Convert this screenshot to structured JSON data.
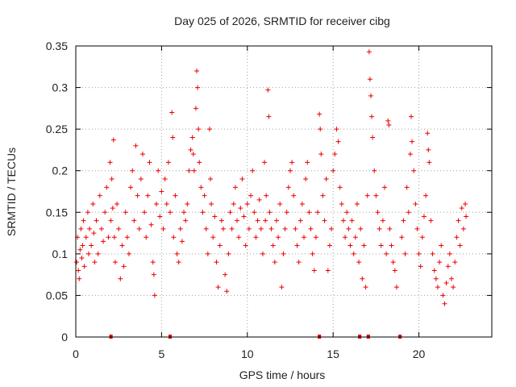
{
  "chart_data": {
    "type": "scatter",
    "title": "Day 025 of 2026, SRMTID for receiver cibg",
    "xlabel": "GPS time / hours",
    "ylabel": "SRMTID / TECUs",
    "xlim": [
      0,
      24.25
    ],
    "ylim": [
      0,
      0.35
    ],
    "xticks": [
      0,
      5,
      10,
      15,
      20
    ],
    "xtick_labels": [
      "0",
      "5",
      "10",
      "15",
      "20"
    ],
    "yticks": [
      0,
      0.05,
      0.1,
      0.15,
      0.2,
      0.25,
      0.3,
      0.35
    ],
    "ytick_labels": [
      "0",
      "0.05",
      "0.1",
      "0.15",
      "0.2",
      "0.25",
      "0.3",
      "0.35"
    ],
    "grid": true,
    "marker": "+",
    "color": "#ee0000",
    "series": [
      {
        "name": "SRMTID",
        "points": [
          [
            0.05,
            0.09
          ],
          [
            0.1,
            0.12
          ],
          [
            0.15,
            0.08
          ],
          [
            0.2,
            0.07
          ],
          [
            0.25,
            0.105
          ],
          [
            0.3,
            0.13
          ],
          [
            0.35,
            0.095
          ],
          [
            0.4,
            0.11
          ],
          [
            0.45,
            0.14
          ],
          [
            0.5,
            0.085
          ],
          [
            0.6,
            0.12
          ],
          [
            0.7,
            0.15
          ],
          [
            0.75,
            0.1
          ],
          [
            0.8,
            0.13
          ],
          [
            0.9,
            0.11
          ],
          [
            1.0,
            0.16
          ],
          [
            1.05,
            0.125
          ],
          [
            1.1,
            0.09
          ],
          [
            1.2,
            0.14
          ],
          [
            1.3,
            0.1
          ],
          [
            1.4,
            0.17
          ],
          [
            1.5,
            0.13
          ],
          [
            1.6,
            0.115
          ],
          [
            1.7,
            0.15
          ],
          [
            1.8,
            0.18
          ],
          [
            1.9,
            0.12
          ],
          [
            2.0,
            0.21
          ],
          [
            2.05,
            0.14
          ],
          [
            2.1,
            0.19
          ],
          [
            2.15,
            0.155
          ],
          [
            2.2,
            0.237
          ],
          [
            2.25,
            0.12
          ],
          [
            2.3,
            0.09
          ],
          [
            2.4,
            0.16
          ],
          [
            2.5,
            0.13
          ],
          [
            2.6,
            0.07
          ],
          [
            2.7,
            0.11
          ],
          [
            2.8,
            0.085
          ],
          [
            2.9,
            0.15
          ],
          [
            3.0,
            0.12
          ],
          [
            3.1,
            0.1
          ],
          [
            3.2,
            0.18
          ],
          [
            3.3,
            0.2
          ],
          [
            3.4,
            0.14
          ],
          [
            3.5,
            0.23
          ],
          [
            3.6,
            0.17
          ],
          [
            3.7,
            0.13
          ],
          [
            3.8,
            0.19
          ],
          [
            3.9,
            0.22
          ],
          [
            4.0,
            0.15
          ],
          [
            4.1,
            0.12
          ],
          [
            4.2,
            0.17
          ],
          [
            4.3,
            0.21
          ],
          [
            4.4,
            0.135
          ],
          [
            4.5,
            0.09
          ],
          [
            4.55,
            0.075
          ],
          [
            4.6,
            0.05
          ],
          [
            4.7,
            0.16
          ],
          [
            4.8,
            0.2
          ],
          [
            4.9,
            0.145
          ],
          [
            5.0,
            0.175
          ],
          [
            5.1,
            0.13
          ],
          [
            5.2,
            0.19
          ],
          [
            5.3,
            0.16
          ],
          [
            5.4,
            0.21
          ],
          [
            5.5,
            0.15
          ],
          [
            5.6,
            0.27
          ],
          [
            5.65,
            0.24
          ],
          [
            5.7,
            0.12
          ],
          [
            5.8,
            0.17
          ],
          [
            5.9,
            0.1
          ],
          [
            6.0,
            0.09
          ],
          [
            6.1,
            0.13
          ],
          [
            6.2,
            0.115
          ],
          [
            6.3,
            0.15
          ],
          [
            6.4,
            0.14
          ],
          [
            6.5,
            0.16
          ],
          [
            6.6,
            0.2
          ],
          [
            6.7,
            0.225
          ],
          [
            6.8,
            0.24
          ],
          [
            6.85,
            0.22
          ],
          [
            6.9,
            0.2
          ],
          [
            7.0,
            0.275
          ],
          [
            7.05,
            0.32
          ],
          [
            7.1,
            0.3
          ],
          [
            7.15,
            0.25
          ],
          [
            7.2,
            0.21
          ],
          [
            7.3,
            0.18
          ],
          [
            7.4,
            0.15
          ],
          [
            7.5,
            0.17
          ],
          [
            7.6,
            0.13
          ],
          [
            7.7,
            0.1
          ],
          [
            7.8,
            0.25
          ],
          [
            7.85,
            0.19
          ],
          [
            7.9,
            0.16
          ],
          [
            8.0,
            0.12
          ],
          [
            8.1,
            0.145
          ],
          [
            8.2,
            0.09
          ],
          [
            8.3,
            0.06
          ],
          [
            8.4,
            0.11
          ],
          [
            8.5,
            0.14
          ],
          [
            8.6,
            0.13
          ],
          [
            8.7,
            0.075
          ],
          [
            8.8,
            0.055
          ],
          [
            8.9,
            0.1
          ],
          [
            9.0,
            0.15
          ],
          [
            9.1,
            0.13
          ],
          [
            9.2,
            0.16
          ],
          [
            9.3,
            0.18
          ],
          [
            9.4,
            0.14
          ],
          [
            9.5,
            0.12
          ],
          [
            9.6,
            0.155
          ],
          [
            9.7,
            0.19
          ],
          [
            9.8,
            0.145
          ],
          [
            9.9,
            0.11
          ],
          [
            10.0,
            0.16
          ],
          [
            10.1,
            0.13
          ],
          [
            10.2,
            0.17
          ],
          [
            10.3,
            0.2
          ],
          [
            10.4,
            0.15
          ],
          [
            10.5,
            0.12
          ],
          [
            10.6,
            0.14
          ],
          [
            10.7,
            0.165
          ],
          [
            10.8,
            0.13
          ],
          [
            10.9,
            0.1
          ],
          [
            11.0,
            0.21
          ],
          [
            11.05,
            0.14
          ],
          [
            11.1,
            0.17
          ],
          [
            11.2,
            0.297
          ],
          [
            11.25,
            0.265
          ],
          [
            11.3,
            0.15
          ],
          [
            11.4,
            0.13
          ],
          [
            11.5,
            0.11
          ],
          [
            11.6,
            0.09
          ],
          [
            11.7,
            0.14
          ],
          [
            11.8,
            0.12
          ],
          [
            11.9,
            0.16
          ],
          [
            12.0,
            0.06
          ],
          [
            12.1,
            0.1
          ],
          [
            12.2,
            0.13
          ],
          [
            12.3,
            0.15
          ],
          [
            12.4,
            0.18
          ],
          [
            12.5,
            0.2
          ],
          [
            12.6,
            0.21
          ],
          [
            12.7,
            0.17
          ],
          [
            12.8,
            0.13
          ],
          [
            12.9,
            0.11
          ],
          [
            13.0,
            0.09
          ],
          [
            13.1,
            0.14
          ],
          [
            13.2,
            0.16
          ],
          [
            13.3,
            0.12
          ],
          [
            13.4,
            0.19
          ],
          [
            13.5,
            0.21
          ],
          [
            13.6,
            0.15
          ],
          [
            13.7,
            0.13
          ],
          [
            13.8,
            0.1
          ],
          [
            13.9,
            0.08
          ],
          [
            14.0,
            0.12
          ],
          [
            14.1,
            0.15
          ],
          [
            14.2,
            0.268
          ],
          [
            14.25,
            0.25
          ],
          [
            14.3,
            0.22
          ],
          [
            14.4,
            0.17
          ],
          [
            14.5,
            0.14
          ],
          [
            14.6,
            0.19
          ],
          [
            14.7,
            0.08
          ],
          [
            14.8,
            0.11
          ],
          [
            14.9,
            0.13
          ],
          [
            15.0,
            0.2
          ],
          [
            15.1,
            0.22
          ],
          [
            15.2,
            0.25
          ],
          [
            15.3,
            0.235
          ],
          [
            15.4,
            0.18
          ],
          [
            15.5,
            0.16
          ],
          [
            15.6,
            0.14
          ],
          [
            15.7,
            0.12
          ],
          [
            15.8,
            0.15
          ],
          [
            15.9,
            0.13
          ],
          [
            16.0,
            0.11
          ],
          [
            16.1,
            0.14
          ],
          [
            16.2,
            0.1
          ],
          [
            16.3,
            0.12
          ],
          [
            16.4,
            0.16
          ],
          [
            16.5,
            0.09
          ],
          [
            16.6,
            0.13
          ],
          [
            16.7,
            0.07
          ],
          [
            16.8,
            0.11
          ],
          [
            16.9,
            0.06
          ],
          [
            17.0,
            0.17
          ],
          [
            17.1,
            0.343
          ],
          [
            17.15,
            0.31
          ],
          [
            17.2,
            0.29
          ],
          [
            17.25,
            0.265
          ],
          [
            17.3,
            0.24
          ],
          [
            17.4,
            0.2
          ],
          [
            17.5,
            0.17
          ],
          [
            17.6,
            0.15
          ],
          [
            17.7,
            0.13
          ],
          [
            17.8,
            0.11
          ],
          [
            17.9,
            0.14
          ],
          [
            18.0,
            0.18
          ],
          [
            18.1,
            0.1
          ],
          [
            18.2,
            0.26
          ],
          [
            18.25,
            0.255
          ],
          [
            18.3,
            0.13
          ],
          [
            18.4,
            0.11
          ],
          [
            18.5,
            0.09
          ],
          [
            18.6,
            0.08
          ],
          [
            18.7,
            0.06
          ],
          [
            19.0,
            0.12
          ],
          [
            19.1,
            0.14
          ],
          [
            19.2,
            0.1
          ],
          [
            19.3,
            0.18
          ],
          [
            19.4,
            0.15
          ],
          [
            19.5,
            0.22
          ],
          [
            19.55,
            0.265
          ],
          [
            19.6,
            0.235
          ],
          [
            19.7,
            0.2
          ],
          [
            19.8,
            0.16
          ],
          [
            19.9,
            0.13
          ],
          [
            20.0,
            0.1
          ],
          [
            20.1,
            0.085
          ],
          [
            20.2,
            0.12
          ],
          [
            20.3,
            0.145
          ],
          [
            20.4,
            0.17
          ],
          [
            20.5,
            0.245
          ],
          [
            20.55,
            0.225
          ],
          [
            20.6,
            0.21
          ],
          [
            20.7,
            0.14
          ],
          [
            20.8,
            0.1
          ],
          [
            20.9,
            0.08
          ],
          [
            21.0,
            0.07
          ],
          [
            21.1,
            0.06
          ],
          [
            21.2,
            0.09
          ],
          [
            21.3,
            0.11
          ],
          [
            21.4,
            0.05
          ],
          [
            21.5,
            0.04
          ],
          [
            21.6,
            0.065
          ],
          [
            21.7,
            0.085
          ],
          [
            21.8,
            0.1
          ],
          [
            21.9,
            0.07
          ],
          [
            22.0,
            0.06
          ],
          [
            22.1,
            0.09
          ],
          [
            22.2,
            0.12
          ],
          [
            22.3,
            0.14
          ],
          [
            22.4,
            0.11
          ],
          [
            22.5,
            0.155
          ],
          [
            22.6,
            0.13
          ],
          [
            22.7,
            0.16
          ],
          [
            22.75,
            0.145
          ]
        ]
      }
    ],
    "zero_markers_x": [
      2.05,
      5.5,
      14.2,
      16.55,
      17.05,
      18.9
    ]
  }
}
